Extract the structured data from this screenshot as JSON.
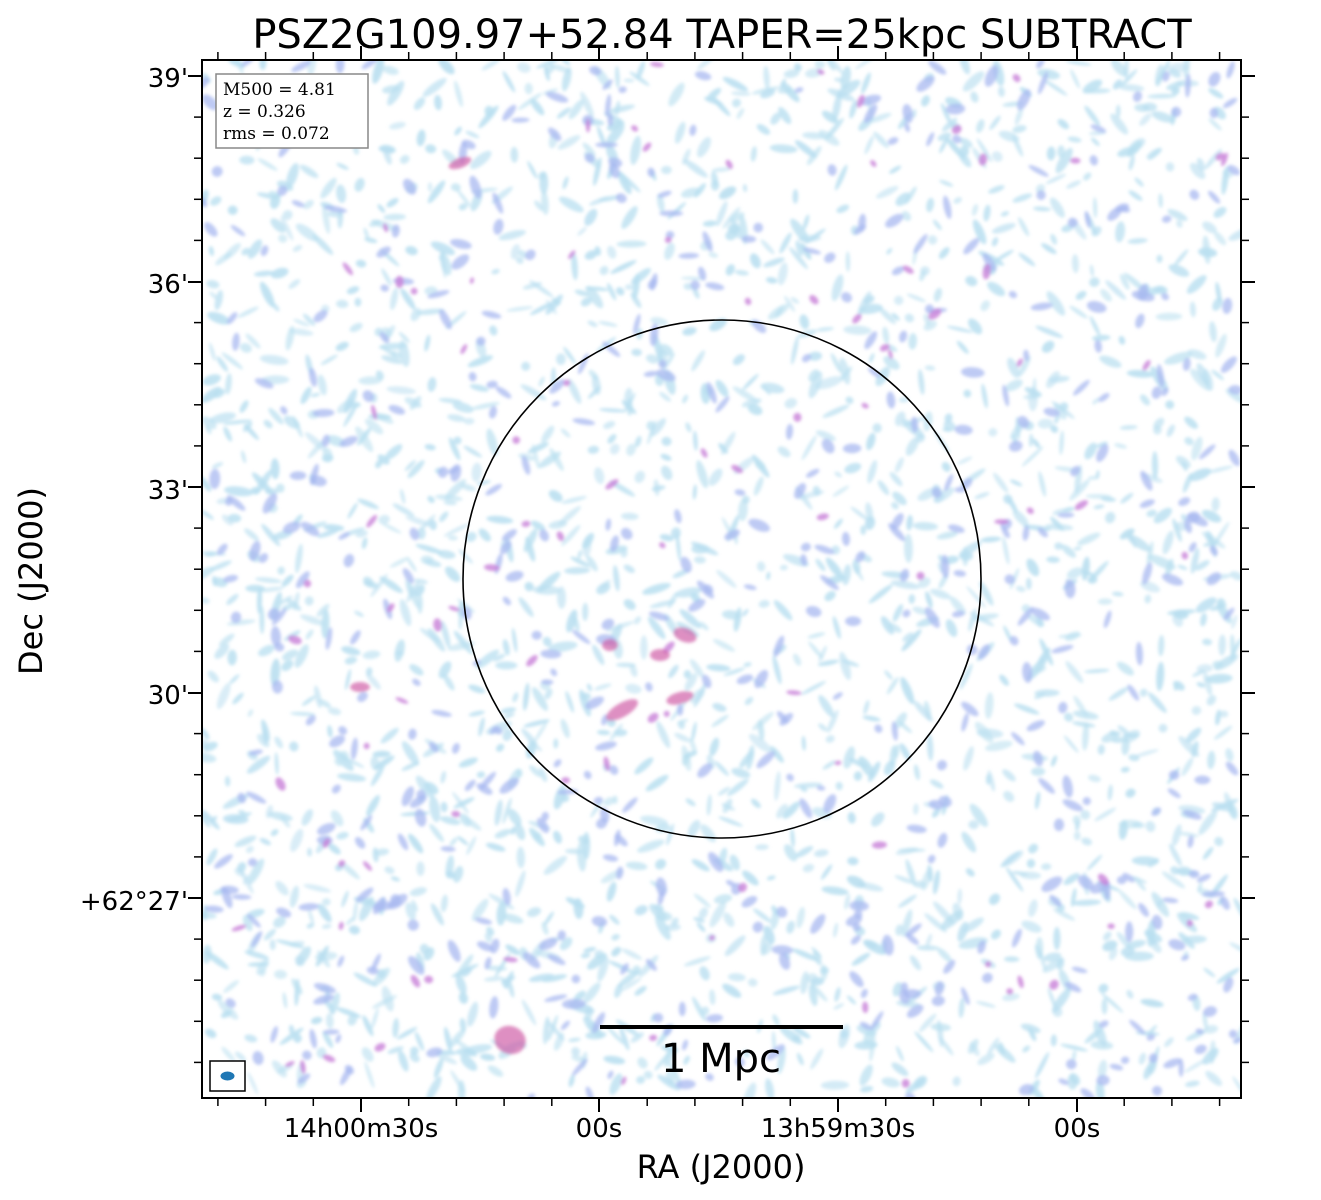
{
  "title": "PSZ2G109.97+52.84 TAPER=25kpc SUBTRACT",
  "axes": {
    "xlabel": "RA (J2000)",
    "ylabel": "Dec (J2000)",
    "x_ticks": [
      "14h00m30s",
      "00s",
      "13h59m30s",
      "00s"
    ],
    "y_ticks": [
      "39'",
      "36'",
      "33'",
      "30'",
      "+62°27'"
    ]
  },
  "info_box": {
    "line1": "M500 = 4.81",
    "line2": "z = 0.326",
    "line3": "rms = 0.072"
  },
  "scale_bar": {
    "label": "1 Mpc"
  },
  "colors": {
    "noise_low": "#b9dff0",
    "noise_mid": "#a8b8f0",
    "noise_high": "#c880d8",
    "peak": "#d060a8",
    "frame": "#000000"
  }
}
